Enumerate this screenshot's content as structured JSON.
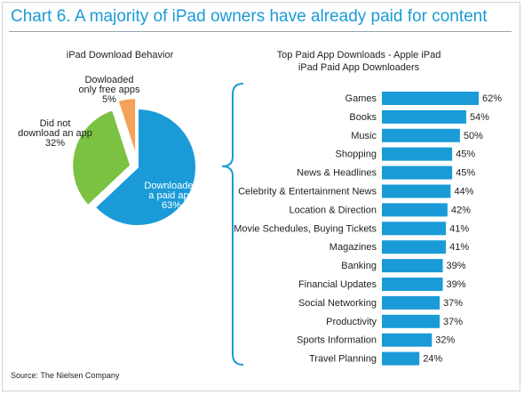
{
  "title": "Chart 6. A majority of iPad owners have already paid for content",
  "source": "Source: The Nielsen Company",
  "colors": {
    "title": "#1a9bd7",
    "blue": "#1a9bd7",
    "green": "#7cc242",
    "orange": "#f4a259",
    "bar": "#1a9bd7"
  },
  "chart_data": [
    {
      "type": "pie",
      "title": "iPad Download Behavior",
      "slices": [
        {
          "lines": [
            "Downloaded",
            "a paid app",
            "63%"
          ],
          "value": 63,
          "color": "#1a9bd7"
        },
        {
          "lines": [
            "Did not",
            "download an app",
            "32%"
          ],
          "value": 32,
          "color": "#7cc242"
        },
        {
          "lines": [
            "Dowloaded",
            "only free apps",
            "5%"
          ],
          "value": 5,
          "color": "#f4a259"
        }
      ]
    },
    {
      "type": "bar",
      "orientation": "horizontal",
      "title": "Top Paid App Downloads - Apple iPad",
      "subtitle": "iPad Paid App Downloaders",
      "categories": [
        "Games",
        "Books",
        "Music",
        "Shopping",
        "News & Headlines",
        "Celebrity & Entertainment News",
        "Location & Direction",
        "Movie Schedules, Buying Tickets",
        "Magazines",
        "Banking",
        "Financial Updates",
        "Social Networking",
        "Productivity",
        "Sports Information",
        "Travel Planning"
      ],
      "values": [
        62,
        54,
        50,
        45,
        45,
        44,
        42,
        41,
        41,
        39,
        39,
        37,
        37,
        32,
        24
      ],
      "value_labels": [
        "62%",
        "54%",
        "50%",
        "45%",
        "45%",
        "44%",
        "42%",
        "41%",
        "41%",
        "39%",
        "39%",
        "37%",
        "37%",
        "32%",
        "24%"
      ],
      "xlim": [
        0,
        62
      ]
    }
  ]
}
